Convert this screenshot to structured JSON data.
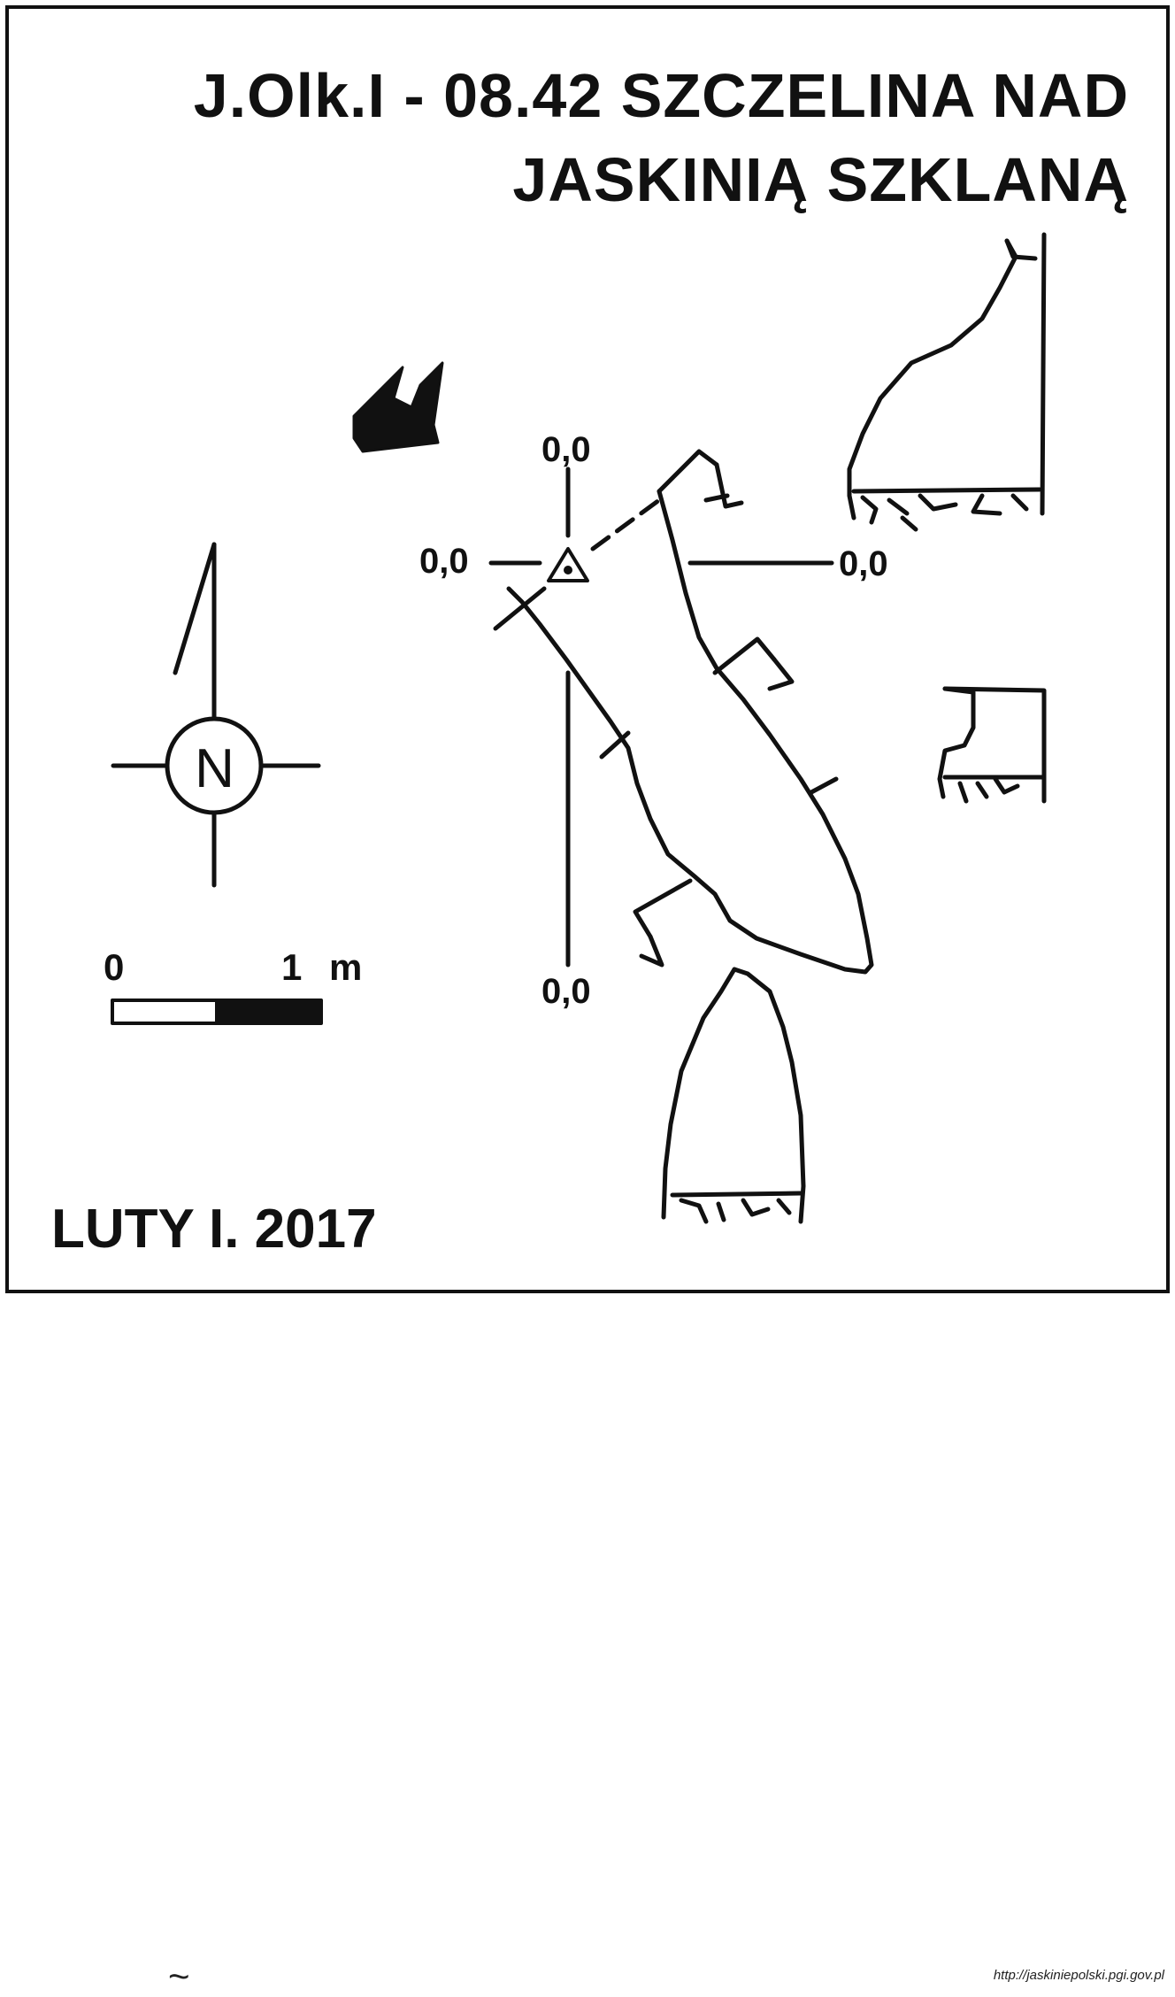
{
  "title": {
    "line1": "J.Olk.I - 08.42 SZCZELINA NAD",
    "line2": "JASKINIĄ SZKLANĄ"
  },
  "survey_datum_labels": {
    "top": "0,0",
    "left": "0,0",
    "right": "0,0",
    "bottom": "0,0"
  },
  "compass": {
    "letter": "N"
  },
  "scale_bar": {
    "start_label": "0",
    "end_label": "1",
    "unit_label": "m"
  },
  "author_date": "LUTY I. 2017",
  "source_url": "http://jaskiniepolski.pgi.gov.pl",
  "stray_mark": "~",
  "colors": {
    "ink": "#111111",
    "background": "#ffffff"
  }
}
